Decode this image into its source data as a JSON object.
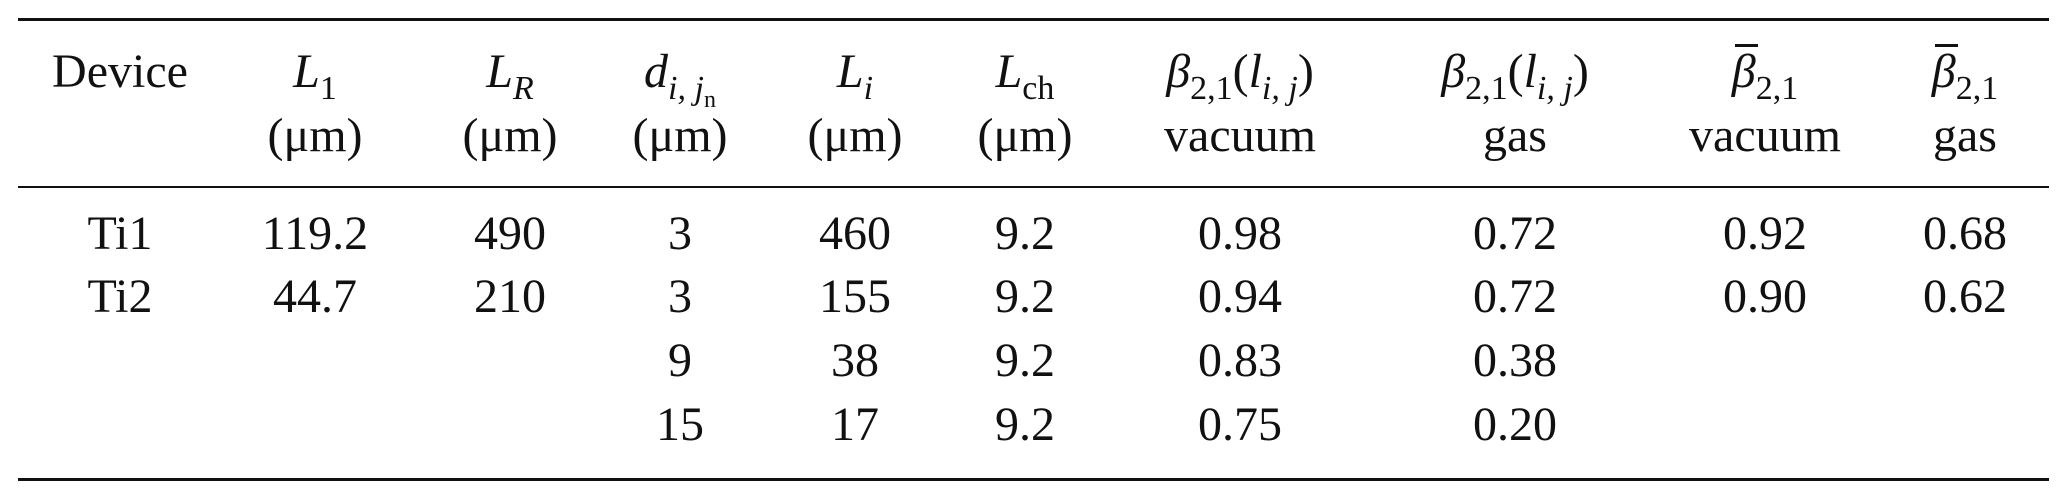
{
  "table": {
    "headers": [
      {
        "line1": "Device",
        "line2": ""
      },
      {
        "line1": "L1",
        "line2": "(μm)"
      },
      {
        "line1": "LR",
        "line2": "(μm)"
      },
      {
        "line1": "di,jn",
        "line2": "(μm)"
      },
      {
        "line1": "Li",
        "line2": "(μm)"
      },
      {
        "line1": "Lch",
        "line2": "(μm)"
      },
      {
        "line1": "β2,1(li,j)",
        "line2": "vacuum"
      },
      {
        "line1": "β2,1(li,j)",
        "line2": "gas"
      },
      {
        "line1": "β̄2,1",
        "line2": "vacuum"
      },
      {
        "line1": "β̄2,1",
        "line2": "gas"
      }
    ],
    "rows": [
      [
        "Ti1",
        "119.2",
        "490",
        "3",
        "460",
        "9.2",
        "0.98",
        "0.72",
        "0.92",
        "0.68"
      ],
      [
        "Ti2",
        "44.7",
        "210",
        "3",
        "155",
        "9.2",
        "0.94",
        "0.72",
        "0.90",
        "0.62"
      ],
      [
        "",
        "",
        "",
        "9",
        "38",
        "9.2",
        "0.83",
        "0.38",
        "",
        ""
      ],
      [
        "",
        "",
        "",
        "15",
        "17",
        "9.2",
        "0.75",
        "0.20",
        "",
        ""
      ]
    ]
  }
}
